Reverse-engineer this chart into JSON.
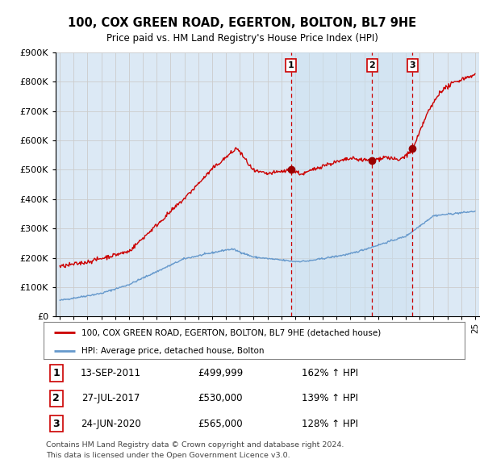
{
  "title": "100, COX GREEN ROAD, EGERTON, BOLTON, BL7 9HE",
  "subtitle": "Price paid vs. HM Land Registry's House Price Index (HPI)",
  "house_label": "100, COX GREEN ROAD, EGERTON, BOLTON, BL7 9HE (detached house)",
  "hpi_label": "HPI: Average price, detached house, Bolton",
  "house_color": "#cc0000",
  "hpi_color": "#6699cc",
  "bg_color": "#dce9f5",
  "shade_color": "#daeaf8",
  "grid_color": "#cccccc",
  "sale_events": [
    {
      "label": "1",
      "date_str": "13-SEP-2011",
      "price": 499999,
      "price_str": "£499,999",
      "pct": "162%",
      "x": 2011.71
    },
    {
      "label": "2",
      "date_str": "27-JUL-2017",
      "price": 530000,
      "price_str": "£530,000",
      "pct": "139%",
      "x": 2017.57
    },
    {
      "label": "3",
      "date_str": "24-JUN-2020",
      "price": 565000,
      "price_str": "£565,000",
      "pct": "128%",
      "x": 2020.48
    }
  ],
  "footnote1": "Contains HM Land Registry data © Crown copyright and database right 2024.",
  "footnote2": "This data is licensed under the Open Government Licence v3.0.",
  "ylim": [
    0,
    900000
  ],
  "xlim": [
    1994.7,
    2025.3
  ]
}
